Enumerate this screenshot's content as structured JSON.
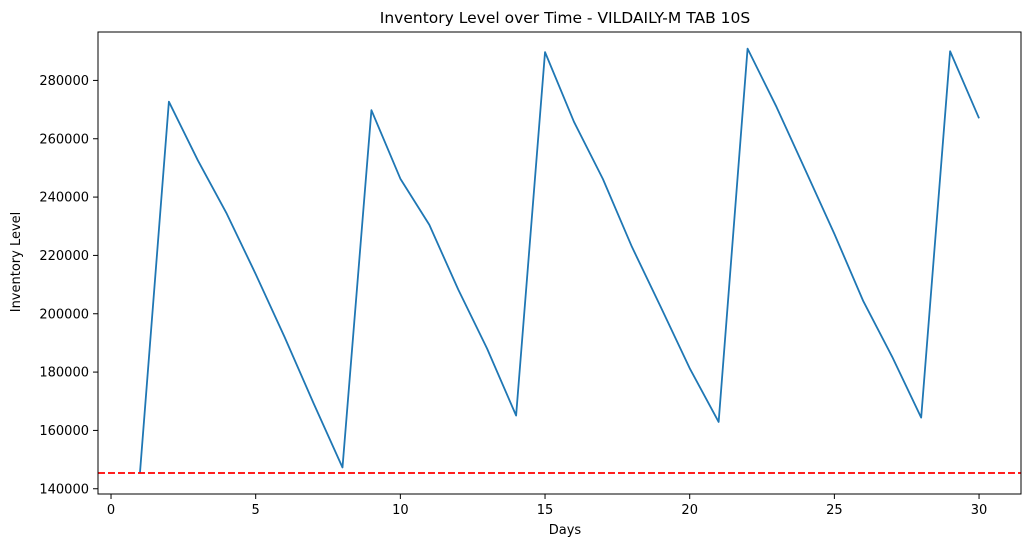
{
  "chart_data": {
    "type": "line",
    "title": "Inventory Level over Time - VILDAILY-M TAB 10S",
    "xlabel": "Days",
    "ylabel": "Inventory Level",
    "xlim": [
      -0.45,
      31.45
    ],
    "ylim": [
      138200,
      296600
    ],
    "xticks": [
      0,
      5,
      10,
      15,
      20,
      25,
      30
    ],
    "yticks": [
      140000,
      160000,
      180000,
      200000,
      220000,
      240000,
      260000,
      280000
    ],
    "grid": false,
    "line_color": "#1f77b4",
    "series": [
      {
        "x": [
          1,
          2,
          3,
          4,
          5,
          6,
          7,
          8,
          9,
          10,
          11,
          12,
          13,
          14,
          15,
          16,
          17,
          18,
          19,
          20,
          21,
          22,
          23,
          24,
          25,
          26,
          27,
          28,
          29,
          30
        ],
        "values": [
          145400,
          272700,
          252600,
          234300,
          213600,
          192000,
          169300,
          147300,
          269800,
          246300,
          230500,
          208300,
          188000,
          165100,
          289700,
          265800,
          246200,
          223000,
          202300,
          181300,
          162900,
          290900,
          270900,
          249200,
          227400,
          204300,
          185200,
          164400,
          290000,
          267000
        ]
      }
    ],
    "reference_line": {
      "y": 145400,
      "color": "#ff0000",
      "style": "dashed"
    }
  }
}
